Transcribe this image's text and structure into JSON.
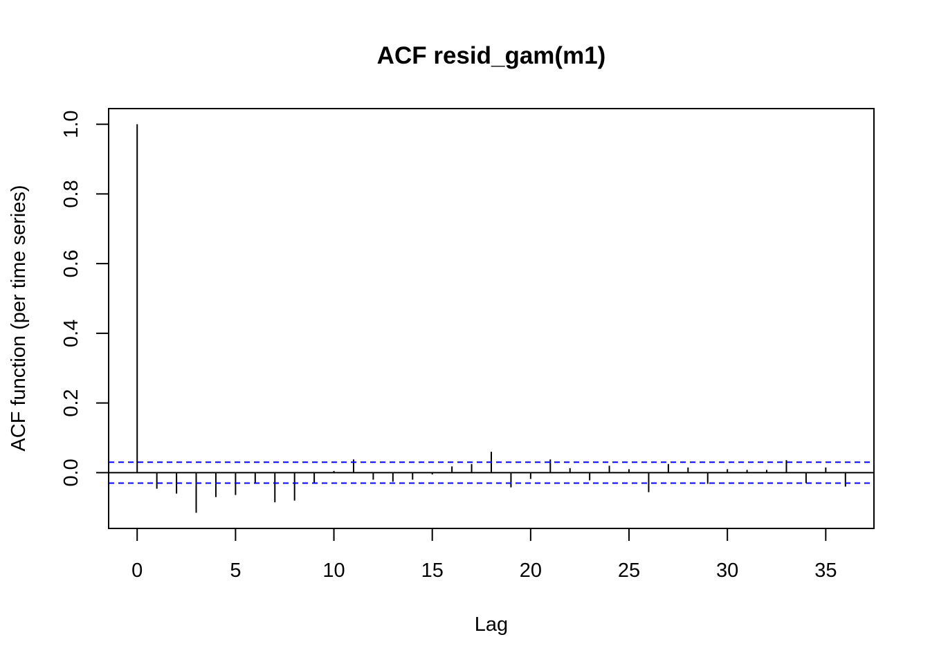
{
  "chart_data": {
    "type": "bar",
    "title": "ACF resid_gam(m1)",
    "xlabel": "Lag",
    "ylabel": "ACF function (per time series)",
    "xlim": [
      -1.45,
      37.45
    ],
    "ylim": [
      -0.16,
      1.045
    ],
    "x_ticks": [
      0,
      5,
      10,
      15,
      20,
      25,
      30,
      35
    ],
    "y_ticks": [
      0.0,
      0.2,
      0.4,
      0.6,
      0.8,
      1.0
    ],
    "x_tick_labels": [
      "0",
      "5",
      "10",
      "15",
      "20",
      "25",
      "30",
      "35"
    ],
    "y_tick_labels": [
      "0.0",
      "0.2",
      "0.4",
      "0.6",
      "0.8",
      "1.0"
    ],
    "lags": [
      0,
      1,
      2,
      3,
      4,
      5,
      6,
      7,
      8,
      9,
      10,
      11,
      12,
      13,
      14,
      15,
      16,
      17,
      18,
      19,
      20,
      21,
      22,
      23,
      24,
      25,
      26,
      27,
      28,
      29,
      30,
      31,
      32,
      33,
      34,
      35,
      36
    ],
    "values": [
      1.0,
      -0.046,
      -0.06,
      -0.115,
      -0.07,
      -0.064,
      -0.032,
      -0.085,
      -0.08,
      -0.032,
      0.005,
      0.038,
      -0.02,
      -0.026,
      -0.02,
      -0.005,
      0.018,
      0.025,
      0.06,
      -0.042,
      -0.018,
      0.038,
      0.013,
      -0.022,
      0.02,
      0.01,
      -0.056,
      0.025,
      0.015,
      -0.032,
      0.01,
      0.008,
      0.008,
      0.036,
      -0.03,
      0.015,
      -0.04
    ],
    "confidence_bounds": [
      0.03,
      -0.03
    ],
    "colors": {
      "bars": "#000000",
      "bounds": "#0000ff",
      "zero_line": "#000000"
    },
    "grid": false
  }
}
